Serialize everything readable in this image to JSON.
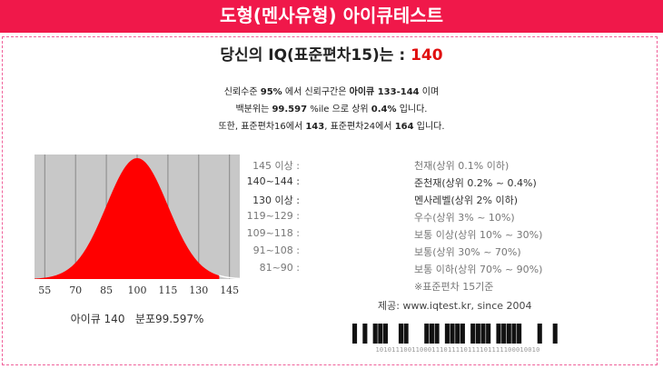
{
  "header": {
    "title": "도형(멘사유형) 아이큐테스트"
  },
  "result": {
    "headline_prefix": "당신의 IQ(표준편차15)는 : ",
    "score": "140"
  },
  "info": {
    "line1": {
      "a": "신뢰수준 ",
      "b": "95%",
      "c": " 에서 신뢰구간은 ",
      "d": "아이큐 133-144",
      "e": " 이며"
    },
    "line2": {
      "a": "백분위는 ",
      "b": "99.597",
      "c": " %ile 으로 상위 ",
      "d": "0.4%",
      "e": " 입니다."
    },
    "line3": {
      "a": "또한, 표준편차16에서 ",
      "b": "143",
      "c": ", 표준편차24에서 ",
      "d": "164",
      "e": " 입니다."
    }
  },
  "chart_data": {
    "type": "area",
    "title": "",
    "x_ticks": [
      "55",
      "70",
      "85",
      "100",
      "115",
      "130",
      "145"
    ],
    "xlim": [
      50,
      150
    ],
    "mean": 100,
    "sd": 15,
    "highlight_max": 140,
    "grid": true,
    "caption_score": "아이큐 140",
    "caption_pct": "분포99.597%",
    "colors": {
      "fill": "#ff0000",
      "background": "#c8c8c8",
      "grid": "#888888"
    }
  },
  "legend": {
    "rows": [
      {
        "range": "145 이상 :",
        "label": "천재(상위 0.1% 이하)"
      },
      {
        "range": "140~144 :",
        "label": "준천재(상위 0.2% ~ 0.4%)"
      },
      {
        "range": "130 이상 :",
        "label": "멘사레벨(상위 2% 이하)"
      },
      {
        "range": "119~129 :",
        "label": "우수(상위 3% ~ 10%)"
      },
      {
        "range": "109~118 :",
        "label": "보통 이상(상위 10% ~ 30%)"
      },
      {
        "range": "91~108 :",
        "label": "보통(상위 30% ~ 70%)"
      },
      {
        "range": "81~90 :",
        "label": "보통 이하(상위 70% ~ 90%)"
      }
    ],
    "note": "※표준편차 15기준"
  },
  "footer": {
    "site": "제공: www.iqtest.kr, since 2004",
    "barcode_digits": "10101110011000111011110111101111100010010"
  }
}
